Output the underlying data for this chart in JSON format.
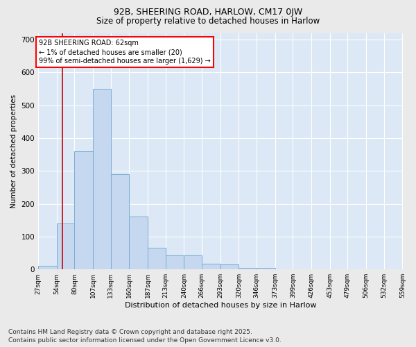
{
  "title1": "92B, SHEERING ROAD, HARLOW, CM17 0JW",
  "title2": "Size of property relative to detached houses in Harlow",
  "xlabel": "Distribution of detached houses by size in Harlow",
  "ylabel": "Number of detached properties",
  "bar_color": "#c5d8f0",
  "bar_edge_color": "#7aadd4",
  "background_color": "#dce8f5",
  "grid_color": "#ffffff",
  "annotation_text": "92B SHEERING ROAD: 62sqm\n← 1% of detached houses are smaller (20)\n99% of semi-detached houses are larger (1,629) →",
  "red_line_x": 62,
  "bins": [
    27,
    54,
    80,
    107,
    133,
    160,
    187,
    213,
    240,
    266,
    293,
    320,
    346,
    373,
    399,
    426,
    453,
    479,
    506,
    532,
    559
  ],
  "counts": [
    10,
    140,
    360,
    550,
    290,
    160,
    65,
    42,
    42,
    18,
    15,
    5,
    5,
    0,
    0,
    0,
    0,
    0,
    0,
    0
  ],
  "ylim": [
    0,
    720
  ],
  "yticks": [
    0,
    100,
    200,
    300,
    400,
    500,
    600,
    700
  ],
  "footnote": "Contains HM Land Registry data © Crown copyright and database right 2025.\nContains public sector information licensed under the Open Government Licence v3.0.",
  "fig_bg_color": "#eaeaea",
  "title1_fontsize": 9,
  "title2_fontsize": 8.5,
  "footnote_fontsize": 6.5,
  "ylabel_fontsize": 7.5,
  "xlabel_fontsize": 8,
  "xtick_fontsize": 6.5,
  "ytick_fontsize": 7.5,
  "annot_fontsize": 7
}
